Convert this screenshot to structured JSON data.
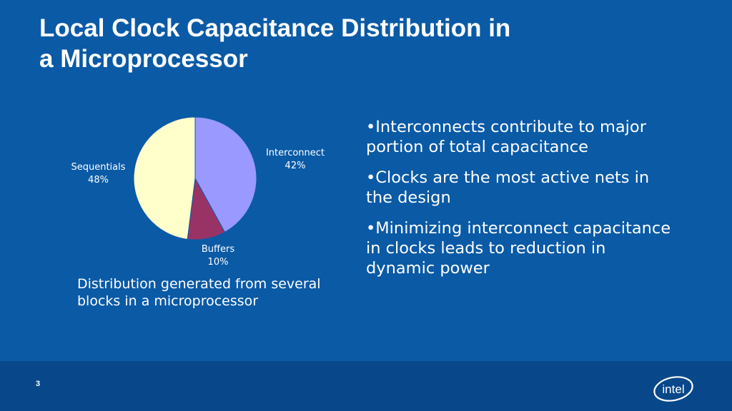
{
  "slide": {
    "title_lines": [
      "Local Clock Capacitance Distribution in",
      "a Microprocessor"
    ],
    "caption_lines": [
      "Distribution generated from several",
      "blocks in a microprocessor"
    ],
    "bullets": [
      {
        "lines": [
          "•Interconnects contribute to major",
          "portion of total capacitance"
        ]
      },
      {
        "lines": [
          "•Clocks are the most active nets in",
          "the design"
        ]
      },
      {
        "lines": [
          "•Minimizing interconnect capacitance",
          "in clocks leads to reduction in",
          "dynamic power"
        ]
      }
    ],
    "page_number": "3",
    "logo_text": "intel"
  },
  "chart_data": {
    "type": "pie",
    "slices": [
      {
        "name": "Interconnect",
        "value": 42,
        "label": "42%",
        "color": "#9999ff"
      },
      {
        "name": "Buffers",
        "value": 10,
        "label": "10%",
        "color": "#993366"
      },
      {
        "name": "Sequentials",
        "value": 48,
        "label": "48%",
        "color": "#ffffcc"
      }
    ],
    "start_angle_deg": 0,
    "direction": "clockwise"
  },
  "colors": {
    "background": "#0a5aa6",
    "footer": "#08488a",
    "text": "#ffffff"
  }
}
